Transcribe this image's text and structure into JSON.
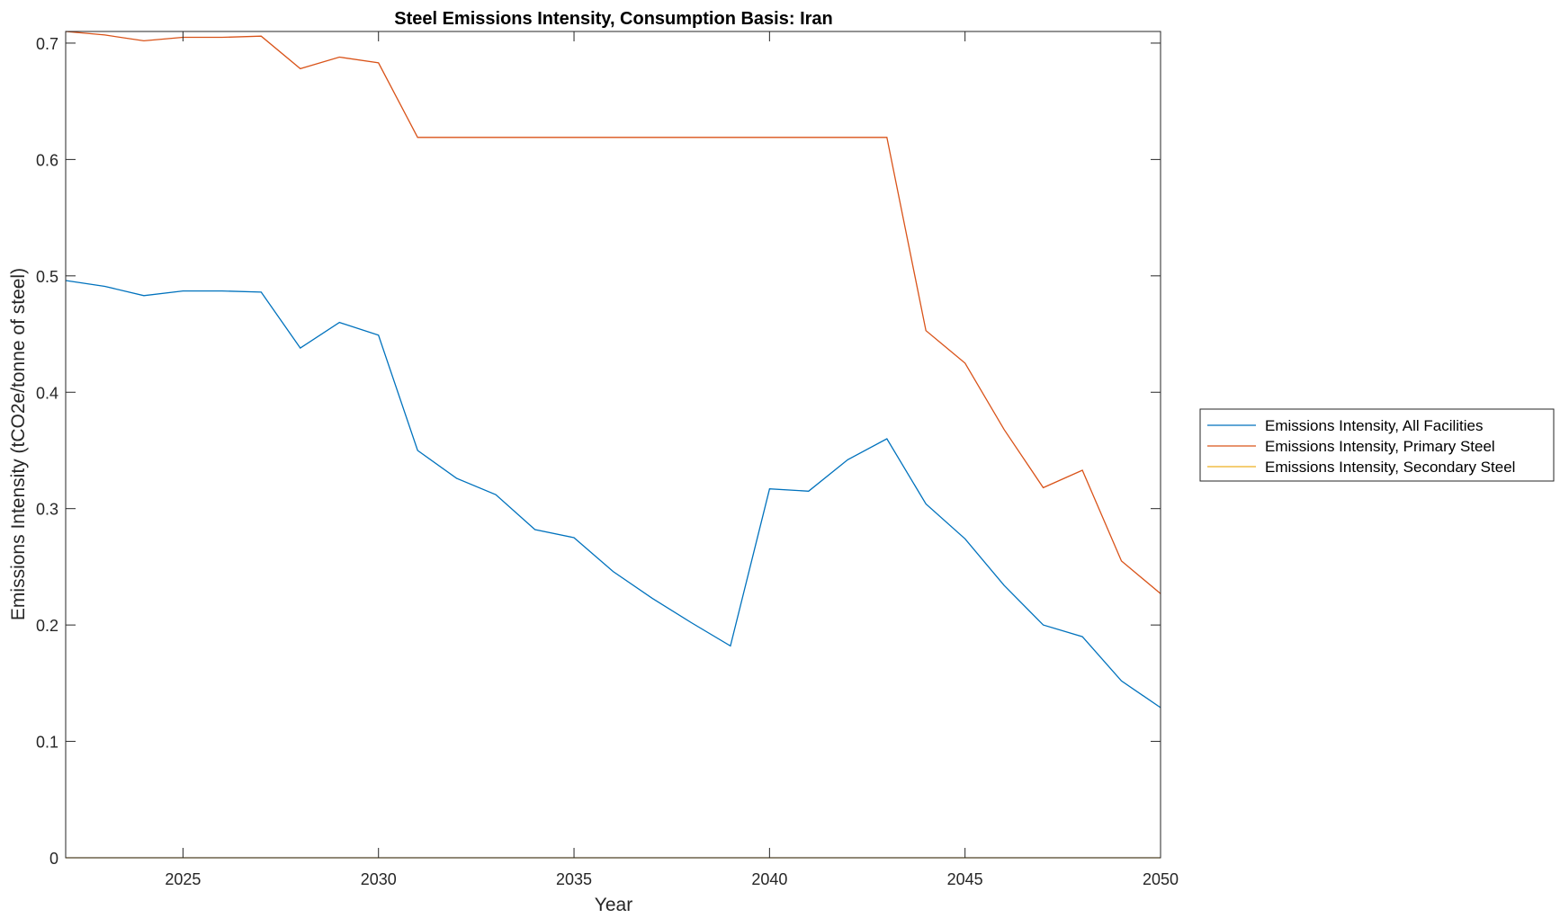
{
  "chart_data": {
    "type": "line",
    "title": "Steel Emissions Intensity, Consumption Basis: Iran",
    "xlabel": "Year",
    "ylabel": "Emissions Intensity (tCO2e/tonne of steel)",
    "xlim": [
      2022,
      2050
    ],
    "ylim": [
      0,
      0.71
    ],
    "xticks": [
      2025,
      2030,
      2035,
      2040,
      2045,
      2050
    ],
    "yticks": [
      0,
      0.1,
      0.2,
      0.3,
      0.4,
      0.5,
      0.6,
      0.7
    ],
    "ytick_labels": [
      "0",
      "0.1",
      "0.2",
      "0.3",
      "0.4",
      "0.5",
      "0.6",
      "0.7"
    ],
    "grid": false,
    "legend_position": "outside-right",
    "x": [
      2022,
      2023,
      2024,
      2025,
      2026,
      2027,
      2028,
      2029,
      2030,
      2031,
      2032,
      2033,
      2034,
      2035,
      2036,
      2037,
      2038,
      2039,
      2040,
      2041,
      2042,
      2043,
      2044,
      2045,
      2046,
      2047,
      2048,
      2049,
      2050
    ],
    "series": [
      {
        "name": "Emissions Intensity, All Facilities",
        "color": "#0072BD",
        "values": [
          0.496,
          0.491,
          0.483,
          0.487,
          0.487,
          0.486,
          0.438,
          0.46,
          0.449,
          0.35,
          0.326,
          0.312,
          0.282,
          0.275,
          0.246,
          0.223,
          0.202,
          0.182,
          0.317,
          0.315,
          0.342,
          0.36,
          0.304,
          0.274,
          0.234,
          0.2,
          0.19,
          0.152,
          0.129
        ]
      },
      {
        "name": "Emissions Intensity, Primary Steel",
        "color": "#D95319",
        "values": [
          0.71,
          0.707,
          0.702,
          0.705,
          0.705,
          0.706,
          0.678,
          0.688,
          0.683,
          0.619,
          0.619,
          0.619,
          0.619,
          0.619,
          0.619,
          0.619,
          0.619,
          0.619,
          0.619,
          0.619,
          0.619,
          0.619,
          0.453,
          0.425,
          0.368,
          0.318,
          0.333,
          0.255,
          0.227
        ]
      },
      {
        "name": "Emissions Intensity, Secondary Steel",
        "color": "#EDB120",
        "values": [
          0,
          0,
          0,
          0,
          0,
          0,
          0,
          0,
          0,
          0,
          0,
          0,
          0,
          0,
          0,
          0,
          0,
          0,
          0,
          0,
          0,
          0,
          0,
          0,
          0,
          0,
          0,
          0,
          0
        ]
      }
    ]
  }
}
